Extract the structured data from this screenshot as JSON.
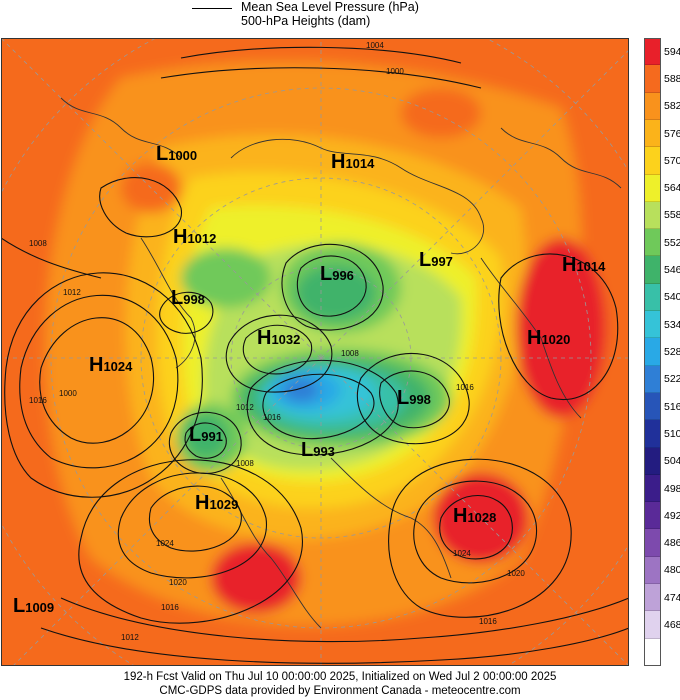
{
  "legend": {
    "line1": "Mean Sea Level Pressure (hPa)",
    "line2": "500-hPa Heights (dam)"
  },
  "color_scale": [
    {
      "label": "594",
      "color": "#e8202a"
    },
    {
      "label": "588",
      "color": "#f56a1e"
    },
    {
      "label": "582",
      "color": "#f9921c"
    },
    {
      "label": "576",
      "color": "#fbb31a"
    },
    {
      "label": "570",
      "color": "#fcd21c"
    },
    {
      "label": "564",
      "color": "#eef02a"
    },
    {
      "label": "558",
      "color": "#b8e05c"
    },
    {
      "label": "552",
      "color": "#6fc95a"
    },
    {
      "label": "546",
      "color": "#3fb36a"
    },
    {
      "label": "540",
      "color": "#38c0a8"
    },
    {
      "label": "534",
      "color": "#35c3d8"
    },
    {
      "label": "528",
      "color": "#29a9e6"
    },
    {
      "label": "522",
      "color": "#2f7fd6"
    },
    {
      "label": "516",
      "color": "#2755b8"
    },
    {
      "label": "510",
      "color": "#20309a"
    },
    {
      "label": "504",
      "color": "#231c80"
    },
    {
      "label": "498",
      "color": "#3b1d8a"
    },
    {
      "label": "492",
      "color": "#5a2a98"
    },
    {
      "label": "486",
      "color": "#7d4aad"
    },
    {
      "label": "480",
      "color": "#9d74c3"
    },
    {
      "label": "474",
      "color": "#bea2d8"
    },
    {
      "label": "468",
      "color": "#e0d2ee"
    },
    {
      "label": "",
      "color": "#ffffff"
    }
  ],
  "pressure_systems": [
    {
      "type": "L",
      "value": "1000"
    },
    {
      "type": "H",
      "value": "1014"
    },
    {
      "type": "H",
      "value": "1012"
    },
    {
      "type": "L",
      "value": "996"
    },
    {
      "type": "L",
      "value": "997"
    },
    {
      "type": "H",
      "value": "1014"
    },
    {
      "type": "L",
      "value": "998"
    },
    {
      "type": "H",
      "value": "1032"
    },
    {
      "type": "H",
      "value": "1020"
    },
    {
      "type": "H",
      "value": "1024"
    },
    {
      "type": "L",
      "value": "998"
    },
    {
      "type": "L",
      "value": "991"
    },
    {
      "type": "L",
      "value": "993"
    },
    {
      "type": "H",
      "value": "1029"
    },
    {
      "type": "H",
      "value": "1028"
    },
    {
      "type": "L",
      "value": "1009"
    }
  ],
  "isobar_labels": [
    "1004",
    "1000",
    "1008",
    "1012",
    "1016",
    "1000",
    "1008",
    "1016",
    "1012",
    "1016",
    "1008",
    "1024",
    "1020",
    "1016",
    "1012",
    "1024",
    "1020",
    "1016"
  ],
  "footer": {
    "line1": "192-h Fcst Valid on Thu Jul 10 00:00:00 2025, Initialized on Wed Jul  2 00:00:00 2025",
    "line2": "CMC-GDPS data provided by Environment Canada - meteocentre.com"
  }
}
